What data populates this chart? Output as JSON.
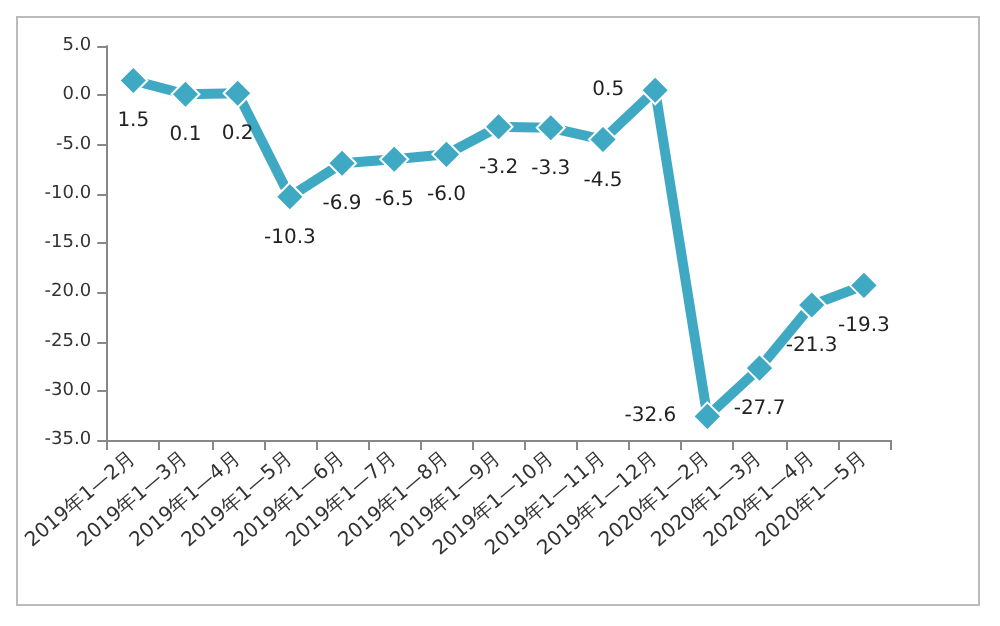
{
  "chart_data": {
    "type": "line",
    "categories": [
      "2019年1—2月",
      "2019年1—3月",
      "2019年1—4月",
      "2019年1—5月",
      "2019年1—6月",
      "2019年1—7月",
      "2019年1—8月",
      "2019年1—9月",
      "2019年1—10月",
      "2019年1—11月",
      "2019年1—12月",
      "2020年1—2月",
      "2020年1—3月",
      "2020年1—4月",
      "2020年1—5月"
    ],
    "series": [
      {
        "color": "#3fa9c4",
        "values": [
          1.5,
          0.1,
          0.2,
          -10.3,
          -6.9,
          -6.5,
          -6.0,
          -3.2,
          -3.3,
          -4.5,
          0.5,
          -32.6,
          -27.7,
          -21.3,
          -19.3
        ],
        "value_labels": [
          "1.5",
          "0.1",
          "0.2",
          "-10.3",
          "-6.9",
          "-6.5",
          "-6.0",
          "-3.2",
          "-3.3",
          "-4.5",
          "0.5",
          "-32.6",
          "-27.7",
          "-21.3",
          "-19.3"
        ]
      }
    ],
    "ylim": [
      -35,
      5
    ],
    "yticks": [
      {
        "value": 5,
        "label": "5.0"
      },
      {
        "value": 0,
        "label": "0.0"
      },
      {
        "value": -5,
        "label": "-5.0"
      },
      {
        "value": -10,
        "label": "-10.0"
      },
      {
        "value": -15,
        "label": "-15.0"
      },
      {
        "value": -20,
        "label": "-20.0"
      },
      {
        "value": -25,
        "label": "-25.0"
      },
      {
        "value": -30,
        "label": "-30.0"
      },
      {
        "value": -35,
        "label": "-35.0"
      }
    ],
    "grid": false,
    "marker": "diamond",
    "line_style": "solid"
  }
}
